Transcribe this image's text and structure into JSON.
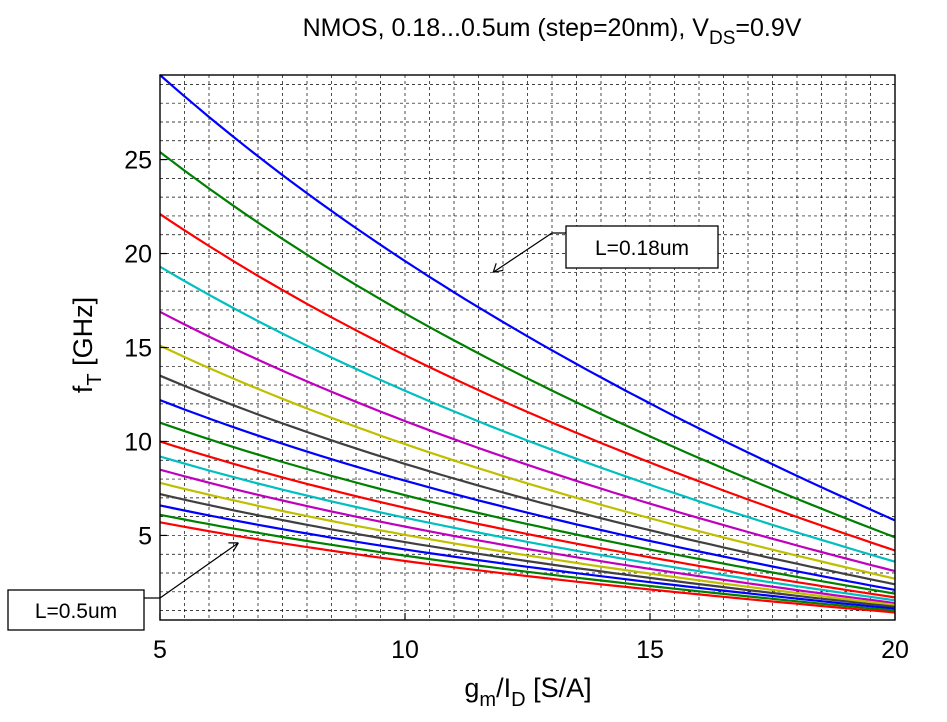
{
  "chart_data": {
    "type": "line",
    "title": {
      "main": "NMOS, 0.18...0.5um (step=20nm), V",
      "sub": "DS",
      "tail": "=0.9V"
    },
    "xlabel": {
      "base": "g",
      "sub1": "m",
      "mid": "/I",
      "sub2": "D",
      "tail": " [S/A]"
    },
    "ylabel": {
      "base": "f",
      "sub": "T",
      "tail": " [GHz]"
    },
    "xlim": [
      5,
      20
    ],
    "ylim": [
      0.5,
      29.5
    ],
    "xticks": [
      5,
      10,
      15,
      20
    ],
    "yticks": [
      5,
      10,
      15,
      20,
      25
    ],
    "grid": true,
    "grid_style": "dashed",
    "x": [
      5,
      20
    ],
    "series": [
      {
        "values": [
          29.5,
          5.8
        ],
        "color": "#0000ff"
      },
      {
        "values": [
          25.4,
          4.9
        ],
        "color": "#008000"
      },
      {
        "values": [
          22.1,
          4.2
        ],
        "color": "#ff0000"
      },
      {
        "values": [
          19.3,
          3.6
        ],
        "color": "#00bfbf"
      },
      {
        "values": [
          16.9,
          3.1
        ],
        "color": "#bf00bf"
      },
      {
        "values": [
          15.1,
          2.7
        ],
        "color": "#bfbf00"
      },
      {
        "values": [
          13.5,
          2.4
        ],
        "color": "#404040"
      },
      {
        "values": [
          12.2,
          2.1
        ],
        "color": "#0000ff"
      },
      {
        "values": [
          11.0,
          1.9
        ],
        "color": "#008000"
      },
      {
        "values": [
          10.0,
          1.7
        ],
        "color": "#ff0000"
      },
      {
        "values": [
          9.2,
          1.55
        ],
        "color": "#00bfbf"
      },
      {
        "values": [
          8.5,
          1.4
        ],
        "color": "#bf00bf"
      },
      {
        "values": [
          7.8,
          1.3
        ],
        "color": "#bfbf00"
      },
      {
        "values": [
          7.2,
          1.2
        ],
        "color": "#404040"
      },
      {
        "values": [
          6.6,
          1.1
        ],
        "color": "#0000ff"
      },
      {
        "values": [
          6.1,
          1.0
        ],
        "color": "#008000"
      },
      {
        "values": [
          5.7,
          0.9
        ],
        "color": "#ff0000"
      }
    ],
    "annotations": [
      {
        "text": "L=0.18um",
        "target": [
          11.8,
          19.0
        ]
      },
      {
        "text": "L=0.5um",
        "target": [
          6.6,
          4.6
        ]
      }
    ]
  }
}
